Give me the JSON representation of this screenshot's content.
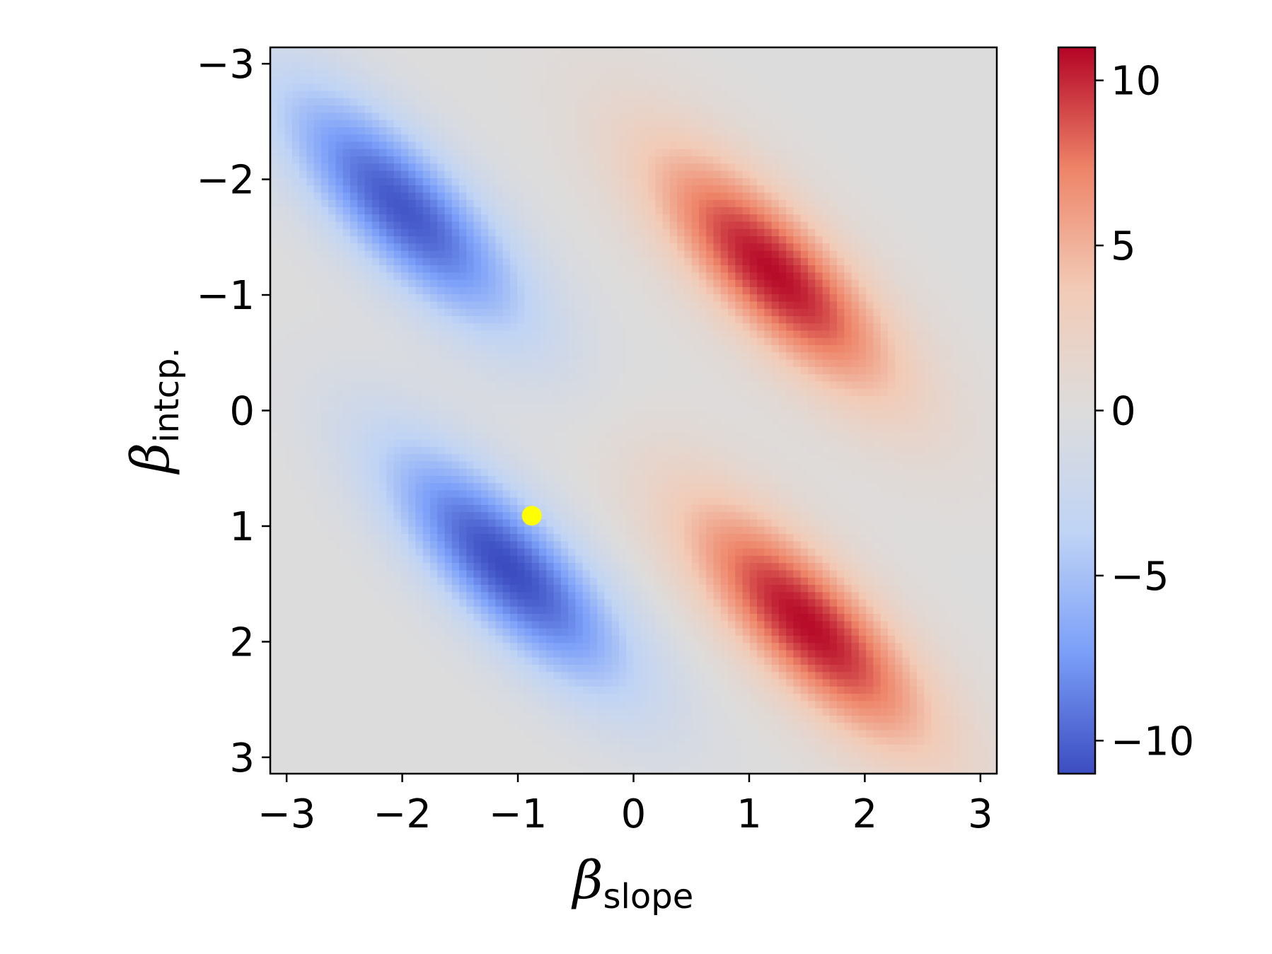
{
  "chart_data": {
    "type": "heatmap",
    "title": "",
    "xlabel": {
      "symbol": "β",
      "subscript": "slope"
    },
    "ylabel": {
      "symbol": "β",
      "subscript": "intcp."
    },
    "xlim": [
      -3.14159,
      3.14159
    ],
    "ylim": [
      3.14159,
      -3.14159
    ],
    "y_inverted": true,
    "x_ticks": [
      -3,
      -2,
      -1,
      0,
      1,
      2,
      3
    ],
    "x_tick_labels": [
      "−3",
      "−2",
      "−1",
      "0",
      "1",
      "2",
      "3"
    ],
    "y_ticks": [
      -3,
      -2,
      -1,
      0,
      1,
      2,
      3
    ],
    "y_tick_labels": [
      "−3",
      "−2",
      "−1",
      "0",
      "1",
      "2",
      "3"
    ],
    "grid": false,
    "colormap": "coolwarm",
    "colormap_stops": [
      "#3b4cc0",
      "#7b9ff9",
      "#c0d4f5",
      "#dddcdc",
      "#f2cbb7",
      "#ee8468",
      "#b40426"
    ],
    "color_range": [
      -11,
      11
    ],
    "colorbar": {
      "ticks": [
        10,
        5,
        0,
        -5,
        -10
      ],
      "tick_labels": [
        "10",
        "5",
        "0",
        "−5",
        "−10"
      ]
    },
    "grid_resolution": 100,
    "blobs": [
      {
        "kind": "negative",
        "x": -2.0,
        "y": -1.75,
        "peak": -10.5
      },
      {
        "kind": "positive",
        "x": 1.2,
        "y": -1.2,
        "peak": 10.8
      },
      {
        "kind": "negative",
        "x": -1.1,
        "y": 1.35,
        "peak": -11.0
      },
      {
        "kind": "positive",
        "x": 1.5,
        "y": 1.85,
        "peak": 10.8
      }
    ],
    "marker": {
      "x": -0.88,
      "y": 0.91,
      "color": "#ffff00"
    }
  }
}
